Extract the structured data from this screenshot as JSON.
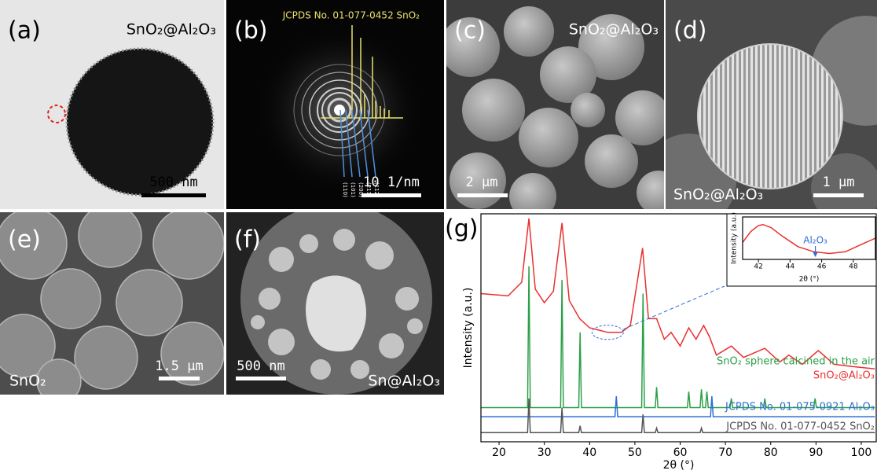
{
  "panels": {
    "a": {
      "label": "(a)",
      "caption": "SnO₂@Al₂O₃",
      "scale_bar": "500 nm"
    },
    "b": {
      "label": "(b)",
      "reference": "JCPDS No. 01-077-0452 SnO₂",
      "planes": [
        "(110)",
        "(101)",
        "(200)",
        "(211)",
        "(112)"
      ],
      "scale_bar": "10 1/nm"
    },
    "c": {
      "label": "(c)",
      "caption": "SnO₂@Al₂O₃",
      "scale_bar": "2 μm"
    },
    "d": {
      "label": "(d)",
      "caption": "SnO₂@Al₂O₃",
      "scale_bar": "1 μm"
    },
    "e": {
      "label": "(e)",
      "caption": "SnO₂",
      "scale_bar": "1.5 μm"
    },
    "f": {
      "label": "(f)",
      "caption": "Sn@Al₂O₃",
      "scale_bar": "500 nm"
    },
    "g": {
      "label": "(g)"
    }
  },
  "chart_data": [
    {
      "type": "line",
      "xlabel": "2θ (°)",
      "ylabel": "Intensity (a.u.)",
      "xlim": [
        16,
        103.3
      ],
      "xticks": [
        20,
        30,
        40,
        50,
        60,
        70,
        80,
        90,
        100
      ],
      "ylim": [
        0,
        100
      ],
      "series": [
        {
          "name": "SnO₂@Al₂O₃",
          "color": "#e8312f",
          "x": [
            16,
            22,
            25,
            26.6,
            28,
            30,
            32,
            33.9,
            35.5,
            37.8,
            40,
            44,
            47,
            49,
            51.7,
            53,
            54.8,
            56.5,
            58,
            60,
            61.9,
            63.5,
            65.2,
            66.5,
            68,
            71.3,
            74,
            78.7,
            82,
            84,
            87,
            90.5,
            94,
            98,
            103
          ],
          "values": [
            65,
            64,
            70,
            98,
            67,
            61,
            66,
            96,
            62,
            54,
            50,
            48,
            48,
            51,
            85,
            54,
            54,
            45,
            48,
            42,
            50,
            45,
            51,
            46,
            38,
            42,
            37,
            41,
            35,
            38,
            34,
            40,
            34,
            33,
            32
          ]
        },
        {
          "name": "SnO₂ sphere calcined in the air",
          "color": "#2ca048",
          "x": [
            16,
            26.3,
            26.6,
            26.9,
            33.6,
            33.9,
            34.2,
            37.6,
            37.9,
            38.2,
            51.5,
            51.8,
            52.1,
            54.5,
            54.8,
            55.1,
            61.6,
            61.9,
            62.2,
            64.4,
            64.7,
            65.0,
            65.6,
            65.9,
            66.2,
            71.0,
            71.3,
            71.6,
            78.4,
            78.7,
            79.0,
            89.5,
            89.8,
            90.1,
            103
          ],
          "values": [
            15,
            15,
            77,
            15,
            15,
            71,
            15,
            15,
            48,
            15,
            15,
            65,
            15,
            15,
            24,
            15,
            15,
            22,
            15,
            15,
            23,
            15,
            15,
            22,
            15,
            15,
            19,
            15,
            15,
            19,
            15,
            15,
            19,
            15,
            15
          ]
        },
        {
          "name": "JCPDS No. 01-075-0921 Al₂O₃",
          "color": "#2f6fd0",
          "x": [
            16,
            45.6,
            45.9,
            46.2,
            66.7,
            67.0,
            67.3,
            103
          ],
          "values": [
            11,
            11,
            20,
            11,
            11,
            20,
            11,
            11
          ]
        },
        {
          "name": "JCPDS No. 01-077-0452 SnO₂",
          "color": "#555555",
          "x": [
            16,
            26.3,
            26.6,
            26.9,
            33.6,
            33.9,
            34.2,
            37.6,
            37.9,
            38.2,
            51.5,
            51.8,
            52.1,
            54.5,
            54.8,
            55.1,
            64.4,
            64.7,
            65.0,
            103
          ],
          "values": [
            4,
            4,
            19,
            4,
            4,
            15,
            4,
            4,
            7,
            4,
            4,
            12,
            4,
            4,
            6,
            4,
            4,
            6,
            4,
            4
          ]
        }
      ]
    },
    {
      "type": "line",
      "xlabel": "2θ (°)",
      "ylabel": "Intensity (a.u.)",
      "xlim": [
        41,
        49.4
      ],
      "xticks": [
        42,
        44,
        46,
        48
      ],
      "ylim": [
        0,
        100
      ],
      "annotation": {
        "text": "Al₂O₃",
        "x": 45.6
      },
      "series": [
        {
          "color": "#e8312f",
          "x": [
            41,
            41.5,
            42,
            42.3,
            42.8,
            43.5,
            44.5,
            45.5,
            46.5,
            47.5,
            48.5,
            49.4
          ],
          "values": [
            40,
            65,
            80,
            82,
            75,
            55,
            30,
            18,
            14,
            18,
            35,
            50
          ]
        }
      ]
    }
  ]
}
